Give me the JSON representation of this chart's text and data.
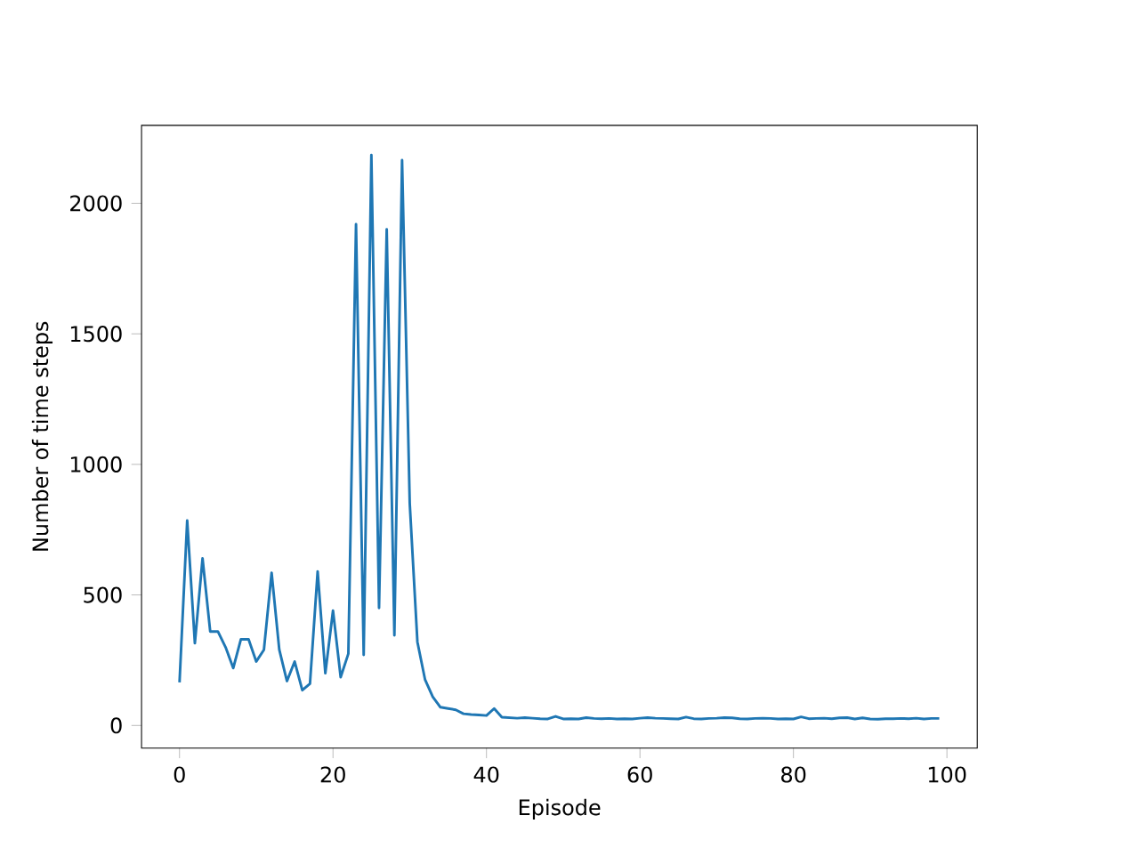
{
  "chart_data": {
    "type": "line",
    "xlabel": "Episode",
    "ylabel": "Number of time steps",
    "x": [
      0,
      1,
      2,
      3,
      4,
      5,
      6,
      7,
      8,
      9,
      10,
      11,
      12,
      13,
      14,
      15,
      16,
      17,
      18,
      19,
      20,
      21,
      22,
      23,
      24,
      25,
      26,
      27,
      28,
      29,
      30,
      31,
      32,
      33,
      34,
      35,
      36,
      37,
      38,
      39,
      40,
      41,
      42,
      43,
      44,
      45,
      46,
      47,
      48,
      49,
      50,
      51,
      52,
      53,
      54,
      55,
      56,
      57,
      58,
      59,
      60,
      61,
      62,
      63,
      64,
      65,
      66,
      67,
      68,
      69,
      70,
      71,
      72,
      73,
      74,
      75,
      76,
      77,
      78,
      79,
      80,
      81,
      82,
      83,
      84,
      85,
      86,
      87,
      88,
      89,
      90,
      91,
      92,
      93,
      94,
      95,
      96,
      97,
      98,
      99
    ],
    "series": [
      {
        "color": "#1f77b4",
        "values": [
          165,
          785,
          315,
          640,
          360,
          360,
          300,
          220,
          330,
          330,
          245,
          290,
          585,
          290,
          170,
          245,
          135,
          160,
          590,
          200,
          440,
          185,
          275,
          1920,
          270,
          2185,
          450,
          1900,
          345,
          2165,
          850,
          320,
          175,
          110,
          70,
          65,
          60,
          45,
          42,
          40,
          38,
          65,
          32,
          30,
          28,
          30,
          28,
          26,
          25,
          35,
          25,
          26,
          25,
          30,
          27,
          26,
          27,
          25,
          26,
          25,
          28,
          30,
          28,
          27,
          26,
          25,
          32,
          26,
          25,
          27,
          28,
          30,
          29,
          26,
          25,
          27,
          28,
          27,
          25,
          26,
          25,
          33,
          26,
          27,
          28,
          26,
          29,
          30,
          25,
          29,
          25,
          24,
          26,
          26,
          27,
          26,
          28,
          25,
          27,
          27
        ]
      }
    ],
    "xlim": [
      -4.95,
      103.95
    ],
    "ylim": [
      -86.5,
      2298.5
    ],
    "xticks": [
      0,
      20,
      40,
      60,
      80,
      100
    ],
    "yticks": [
      0,
      500,
      1000,
      1500,
      2000
    ]
  }
}
